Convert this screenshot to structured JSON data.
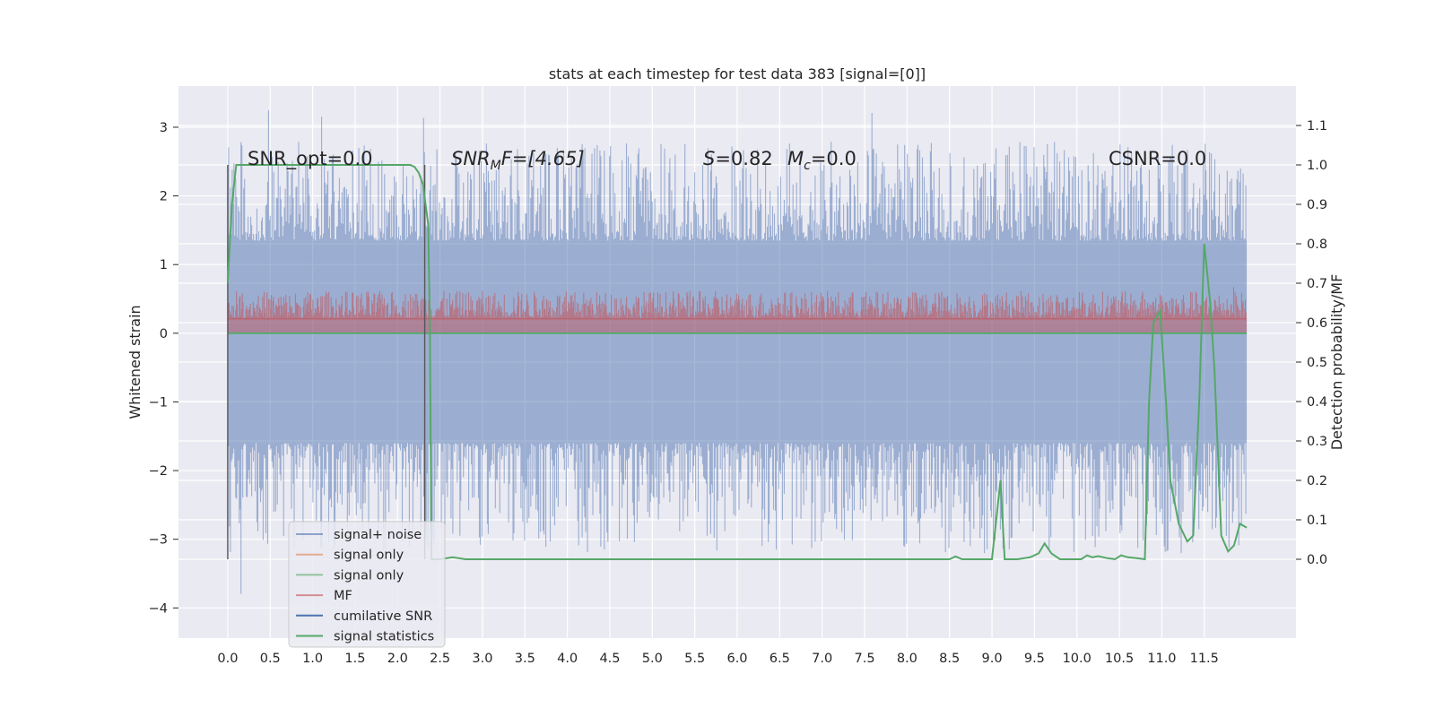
{
  "chart_data": {
    "type": "line",
    "title": "stats at each timestep for test data 383 [signal=[0]]",
    "xlabel": "",
    "ylabel": "Whitened strain",
    "y2label": "Detection probability/MF",
    "xlim": [
      -0.58,
      12.58
    ],
    "ylim": [
      -4.44,
      3.6
    ],
    "y2lim": [
      -0.2,
      1.2
    ],
    "xticks": [
      "0.0",
      "0.5",
      "1.0",
      "1.5",
      "2.0",
      "2.5",
      "3.0",
      "3.5",
      "4.0",
      "4.5",
      "5.0",
      "5.5",
      "6.0",
      "6.5",
      "7.0",
      "7.5",
      "8.0",
      "8.5",
      "9.0",
      "9.5",
      "10.0",
      "10.5",
      "11.0",
      "11.5"
    ],
    "yticks": [
      "−4",
      "−3",
      "−2",
      "−1",
      "0",
      "1",
      "2",
      "3"
    ],
    "y2ticks": [
      "0.0",
      "0.1",
      "0.2",
      "0.3",
      "0.4",
      "0.5",
      "0.6",
      "0.7",
      "0.8",
      "0.9",
      "1.0",
      "1.1"
    ],
    "grid": true,
    "legend_position": "lower-left",
    "annotations": {
      "snr_opt": "SNR_opt=0.0",
      "snr_mf_sym": "SNR",
      "snr_mf_sub": "M",
      "snr_mf_tail": "F=[4.65]",
      "s_sym": "S",
      "s_val": "=0.82",
      "mc_sym": "M",
      "mc_sub": "c",
      "mc_val": "=0.0",
      "csnr": "CSNR=0.0"
    },
    "series": [
      {
        "name": "signal+ noise",
        "color": "#4c72b0",
        "envelope": {
          "x_range": [
            0.0,
            12.0
          ],
          "typical_range": [
            -1.6,
            1.35
          ],
          "max": 3.27,
          "min": -4.07
        }
      },
      {
        "name": "signal only",
        "color": "#dd8452",
        "values_constant": 0.0
      },
      {
        "name": "signal only",
        "color": "#55a868",
        "values_constant": 0.0
      },
      {
        "name": "MF",
        "color": "#c44e52",
        "envelope": {
          "x_range": [
            0.0,
            12.0
          ],
          "typical_range": [
            0.0,
            0.55
          ],
          "max": 0.97
        }
      },
      {
        "name": "cumilative SNR",
        "color": "#4c72b0",
        "values_constant": 0.0
      },
      {
        "name": "signal statistics",
        "color": "#55a868",
        "axis": "right",
        "x": [
          0.0,
          0.05,
          0.1,
          0.5,
          1.0,
          1.5,
          2.0,
          2.15,
          2.2,
          2.25,
          2.3,
          2.33,
          2.36,
          2.38,
          2.4,
          2.5,
          2.65,
          2.8,
          3.0,
          4.0,
          5.0,
          6.0,
          7.0,
          8.0,
          8.4,
          8.5,
          8.57,
          8.65,
          9.0,
          9.05,
          9.1,
          9.15,
          9.3,
          9.45,
          9.55,
          9.62,
          9.7,
          9.8,
          10.0,
          10.05,
          10.12,
          10.18,
          10.25,
          10.35,
          10.45,
          10.52,
          10.6,
          10.7,
          10.8,
          10.85,
          10.9,
          10.98,
          11.05,
          11.1,
          11.2,
          11.3,
          11.37,
          11.44,
          11.5,
          11.57,
          11.62,
          11.7,
          11.78,
          11.85,
          11.92,
          12.0
        ],
        "values": [
          0.7,
          0.9,
          1.0,
          1.0,
          1.0,
          1.0,
          1.0,
          1.0,
          0.995,
          0.98,
          0.95,
          0.9,
          0.85,
          0.6,
          0.0,
          0.0,
          0.005,
          0.0,
          0.0,
          0.0,
          0.0,
          0.0,
          0.0,
          0.0,
          0.0,
          0.0,
          0.007,
          0.0,
          0.0,
          0.1,
          0.2,
          0.0,
          0.0,
          0.005,
          0.015,
          0.04,
          0.015,
          0.0,
          0.0,
          0.0,
          0.01,
          0.005,
          0.008,
          0.003,
          0.0,
          0.01,
          0.005,
          0.003,
          0.0,
          0.4,
          0.6,
          0.63,
          0.4,
          0.2,
          0.09,
          0.045,
          0.06,
          0.4,
          0.8,
          0.65,
          0.48,
          0.06,
          0.02,
          0.035,
          0.09,
          0.08
        ]
      }
    ],
    "vertical_lines": [
      0.0,
      2.32
    ]
  }
}
